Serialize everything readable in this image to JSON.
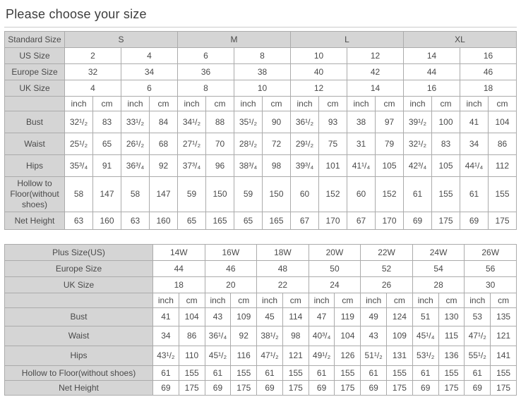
{
  "page": {
    "title": "Please choose your size"
  },
  "colors": {
    "header_bg": "#d5d5d5",
    "border": "#ababab",
    "outer_border": "#8f8f8f",
    "text": "#4a4a4a",
    "cell_bg": "#ffffff"
  },
  "standard_table": {
    "size_rows": [
      {
        "label": "Standard Size",
        "span": 4,
        "shaded": true,
        "cells": [
          "S",
          "M",
          "L",
          "XL"
        ]
      },
      {
        "label": "US Size",
        "span": 2,
        "shaded": false,
        "cells": [
          "2",
          "4",
          "6",
          "8",
          "10",
          "12",
          "14",
          "16"
        ]
      },
      {
        "label": "Europe Size",
        "span": 2,
        "shaded": false,
        "cells": [
          "32",
          "34",
          "36",
          "38",
          "40",
          "42",
          "44",
          "46"
        ]
      },
      {
        "label": "UK Size",
        "span": 2,
        "shaded": false,
        "cells": [
          "4",
          "6",
          "8",
          "10",
          "12",
          "14",
          "16",
          "18"
        ]
      }
    ],
    "units": [
      "inch",
      "cm"
    ],
    "measure_rows": [
      {
        "label": "Bust",
        "cells": [
          "32¹/₂",
          "83",
          "33¹/₂",
          "84",
          "34¹/₂",
          "88",
          "35¹/₂",
          "90",
          "36¹/₂",
          "93",
          "38",
          "97",
          "39¹/₂",
          "100",
          "41",
          "104"
        ]
      },
      {
        "label": "Waist",
        "cells": [
          "25¹/₂",
          "65",
          "26¹/₂",
          "68",
          "27¹/₂",
          "70",
          "28¹/₂",
          "72",
          "29¹/₂",
          "75",
          "31",
          "79",
          "32¹/₂",
          "83",
          "34",
          "86"
        ]
      },
      {
        "label": "Hips",
        "cells": [
          "35³/₄",
          "91",
          "36³/₄",
          "92",
          "37³/₄",
          "96",
          "38³/₄",
          "98",
          "39³/₄",
          "101",
          "41¹/₄",
          "105",
          "42³/₄",
          "105",
          "44¹/₄",
          "112"
        ]
      },
      {
        "label": "Hollow to Floor(without shoes)",
        "cells": [
          "58",
          "147",
          "58",
          "147",
          "59",
          "150",
          "59",
          "150",
          "60",
          "152",
          "60",
          "152",
          "61",
          "155",
          "61",
          "155"
        ]
      },
      {
        "label": "Net Height",
        "cells": [
          "63",
          "160",
          "63",
          "160",
          "65",
          "165",
          "65",
          "165",
          "67",
          "170",
          "67",
          "170",
          "69",
          "175",
          "69",
          "175"
        ]
      }
    ]
  },
  "plus_table": {
    "size_rows": [
      {
        "label": "Plus Size(US)",
        "span": 2,
        "shaded": false,
        "cells": [
          "14W",
          "16W",
          "18W",
          "20W",
          "22W",
          "24W",
          "26W"
        ]
      },
      {
        "label": "Europe Size",
        "span": 2,
        "shaded": false,
        "cells": [
          "44",
          "46",
          "48",
          "50",
          "52",
          "54",
          "56"
        ]
      },
      {
        "label": "UK Size",
        "span": 2,
        "shaded": false,
        "cells": [
          "18",
          "20",
          "22",
          "24",
          "26",
          "28",
          "30"
        ]
      }
    ],
    "units": [
      "inch",
      "cm"
    ],
    "measure_rows": [
      {
        "label": "Bust",
        "cells": [
          "41",
          "104",
          "43",
          "109",
          "45",
          "114",
          "47",
          "119",
          "49",
          "124",
          "51",
          "130",
          "53",
          "135"
        ]
      },
      {
        "label": "Waist",
        "cells": [
          "34",
          "86",
          "36¹/₄",
          "92",
          "38¹/₂",
          "98",
          "40³/₄",
          "104",
          "43",
          "109",
          "45¹/₄",
          "115",
          "47¹/₂",
          "121"
        ]
      },
      {
        "label": "Hips",
        "cells": [
          "43¹/₂",
          "110",
          "45¹/₂",
          "116",
          "47¹/₂",
          "121",
          "49¹/₂",
          "126",
          "51¹/₂",
          "131",
          "53¹/₂",
          "136",
          "55¹/₂",
          "141"
        ]
      },
      {
        "label": "Hollow to Floor(without shoes)",
        "cells": [
          "61",
          "155",
          "61",
          "155",
          "61",
          "155",
          "61",
          "155",
          "61",
          "155",
          "61",
          "155",
          "61",
          "155"
        ]
      },
      {
        "label": "Net Height",
        "cells": [
          "69",
          "175",
          "69",
          "175",
          "69",
          "175",
          "69",
          "175",
          "69",
          "175",
          "69",
          "175",
          "69",
          "175"
        ]
      }
    ]
  }
}
